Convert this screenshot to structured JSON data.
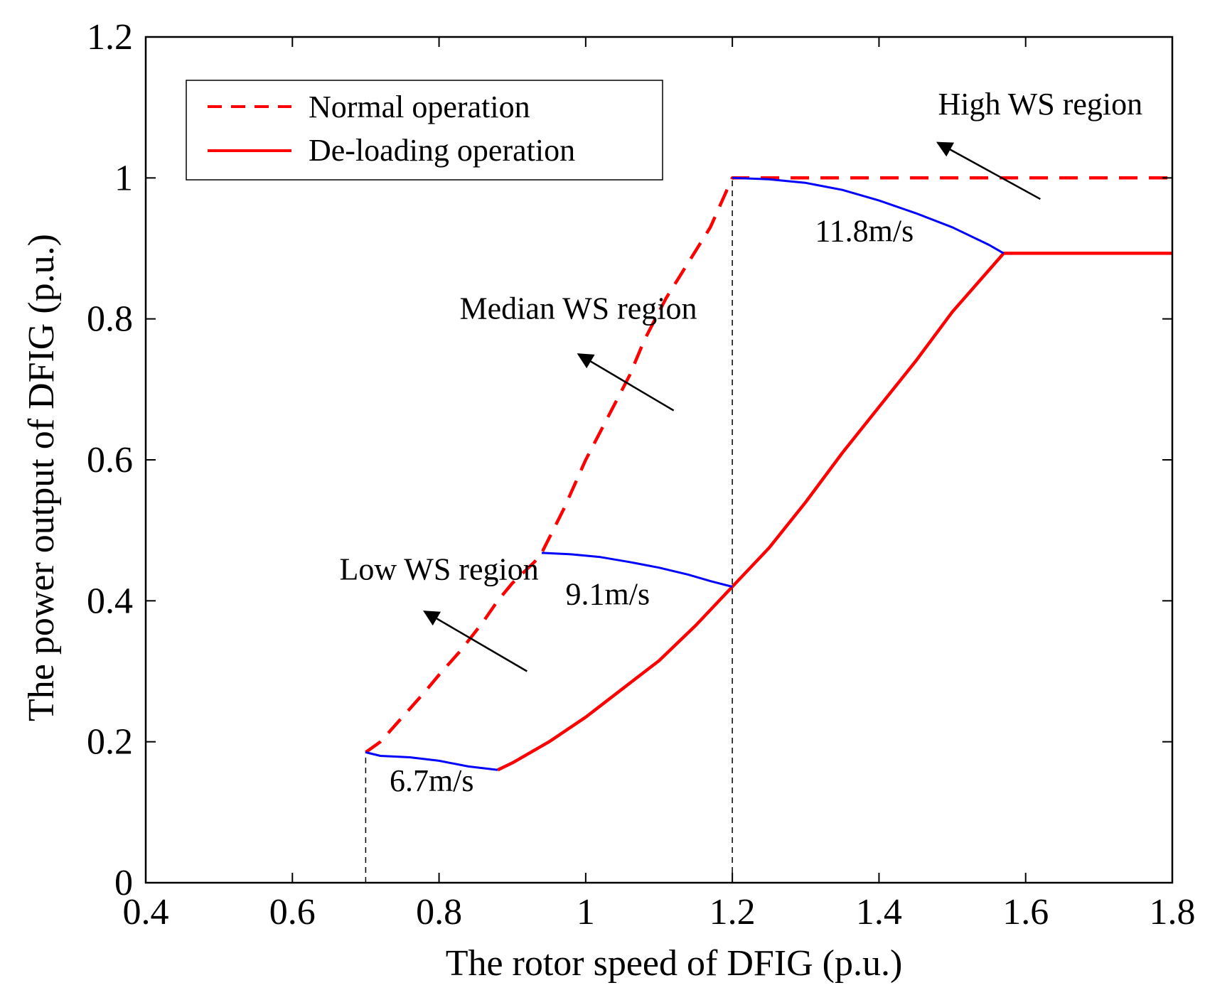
{
  "chart_data": {
    "type": "line",
    "title": "",
    "xlabel": "The rotor speed of DFIG (p.u.)",
    "ylabel": "The power output of DFIG (p.u.)",
    "xlim": [
      0.4,
      1.8
    ],
    "ylim": [
      0,
      1.2
    ],
    "xticks": [
      0.4,
      0.6,
      0.8,
      1.0,
      1.2,
      1.4,
      1.6,
      1.8
    ],
    "xtick_labels": [
      "0.4",
      "0.6",
      "0.8",
      "1",
      "1.2",
      "1.4",
      "1.6",
      "1.8"
    ],
    "yticks": [
      0,
      0.2,
      0.4,
      0.6,
      0.8,
      1.0,
      1.2
    ],
    "ytick_labels": [
      "0",
      "0.2",
      "0.4",
      "0.6",
      "0.8",
      "1",
      "1.2"
    ],
    "grid": false,
    "legend": {
      "position": "top-left",
      "entries": [
        {
          "label": "Normal operation",
          "style": "dashed",
          "color": "#ff0000"
        },
        {
          "label": "De-loading operation",
          "style": "solid",
          "color": "#ff0000"
        }
      ]
    },
    "series": [
      {
        "name": "Normal operation",
        "style": "dashed",
        "color": "#ff0000",
        "x": [
          0.7,
          0.72,
          0.75,
          0.78,
          0.8,
          0.83,
          0.86,
          0.88,
          0.9,
          0.93,
          0.94,
          0.97,
          1.0,
          1.03,
          1.06,
          1.08,
          1.11,
          1.14,
          1.17,
          1.2,
          1.3,
          1.4,
          1.5,
          1.6,
          1.7,
          1.8
        ],
        "y": [
          0.185,
          0.2,
          0.235,
          0.27,
          0.295,
          0.33,
          0.37,
          0.4,
          0.425,
          0.455,
          0.468,
          0.53,
          0.6,
          0.66,
          0.72,
          0.77,
          0.83,
          0.88,
          0.93,
          1.0,
          1.0,
          1.0,
          1.0,
          1.0,
          1.0,
          1.0
        ]
      },
      {
        "name": "De-loading operation",
        "style": "solid",
        "color": "#ff0000",
        "x": [
          0.88,
          0.9,
          0.95,
          1.0,
          1.05,
          1.1,
          1.15,
          1.2,
          1.25,
          1.3,
          1.35,
          1.4,
          1.45,
          1.5,
          1.57,
          1.6,
          1.7,
          1.8
        ],
        "y": [
          0.16,
          0.17,
          0.2,
          0.235,
          0.275,
          0.315,
          0.365,
          0.42,
          0.475,
          0.54,
          0.61,
          0.675,
          0.74,
          0.81,
          0.893,
          0.893,
          0.893,
          0.893
        ]
      },
      {
        "name": "6.7m/s",
        "style": "solid",
        "color": "#0000ff",
        "x": [
          0.7,
          0.72,
          0.76,
          0.8,
          0.84,
          0.88
        ],
        "y": [
          0.185,
          0.18,
          0.178,
          0.173,
          0.165,
          0.16
        ]
      },
      {
        "name": "9.1m/s",
        "style": "solid",
        "color": "#0000ff",
        "x": [
          0.94,
          0.98,
          1.02,
          1.06,
          1.1,
          1.14,
          1.17,
          1.2
        ],
        "y": [
          0.468,
          0.466,
          0.462,
          0.455,
          0.447,
          0.437,
          0.428,
          0.42
        ]
      },
      {
        "name": "11.8m/s",
        "style": "solid",
        "color": "#0000ff",
        "x": [
          1.2,
          1.25,
          1.3,
          1.35,
          1.4,
          1.45,
          1.5,
          1.55,
          1.57
        ],
        "y": [
          1.0,
          0.998,
          0.993,
          0.983,
          0.968,
          0.95,
          0.93,
          0.905,
          0.893
        ]
      },
      {
        "name": "guide-0.7",
        "style": "thin-dashed",
        "color": "#000000",
        "x": [
          0.7,
          0.7
        ],
        "y": [
          0,
          0.185
        ]
      },
      {
        "name": "guide-1.2",
        "style": "thin-dashed",
        "color": "#000000",
        "x": [
          1.2,
          1.2
        ],
        "y": [
          0,
          1.0
        ]
      }
    ],
    "annotations": [
      {
        "text": "High WS region",
        "x": 1.62,
        "y": 1.09,
        "arrow_from": [
          1.62,
          0.97
        ],
        "arrow_to": [
          1.48,
          1.05
        ]
      },
      {
        "text": "Median WS region",
        "x": 0.99,
        "y": 0.8,
        "arrow_from": [
          1.12,
          0.67
        ],
        "arrow_to": [
          0.99,
          0.75
        ]
      },
      {
        "text": "Low WS region",
        "x": 0.8,
        "y": 0.43,
        "arrow_from": [
          0.92,
          0.3
        ],
        "arrow_to": [
          0.78,
          0.385
        ]
      },
      {
        "text": "11.8m/s",
        "x": 1.38,
        "y": 0.91
      },
      {
        "text": "9.1m/s",
        "x": 1.03,
        "y": 0.395
      },
      {
        "text": "6.7m/s",
        "x": 0.79,
        "y": 0.13
      }
    ]
  }
}
